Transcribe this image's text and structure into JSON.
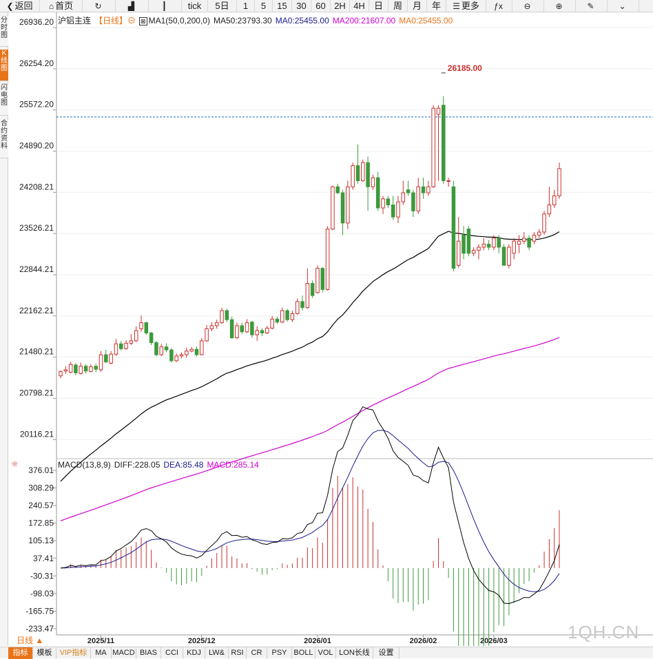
{
  "toolbar": {
    "items": [
      {
        "label": "返回",
        "icon": "arrow-left-icon"
      },
      {
        "label": "首页",
        "icon": "home-icon"
      },
      {
        "label": "",
        "icon": "refresh-icon"
      },
      {
        "label": "",
        "icon": "bar-chart-icon"
      },
      {
        "label": "",
        "icon": "candlestick-icon"
      },
      {
        "label": "tick",
        "icon": ""
      },
      {
        "label": "5日",
        "icon": ""
      },
      {
        "label": "1",
        "icon": ""
      },
      {
        "label": "5",
        "icon": ""
      },
      {
        "label": "15",
        "icon": ""
      },
      {
        "label": "30",
        "icon": ""
      },
      {
        "label": "60",
        "icon": ""
      },
      {
        "label": "2H",
        "icon": ""
      },
      {
        "label": "4H",
        "icon": ""
      },
      {
        "label": "日",
        "icon": ""
      },
      {
        "label": "周",
        "icon": ""
      },
      {
        "label": "月",
        "icon": ""
      },
      {
        "label": "年",
        "icon": ""
      },
      {
        "label": "更多",
        "icon": "menu-icon"
      },
      {
        "label": "",
        "icon": "formula-icon"
      },
      {
        "label": "",
        "icon": "zoom-out-icon"
      },
      {
        "label": "",
        "icon": "zoom-in-icon"
      },
      {
        "label": "",
        "icon": "pen-icon"
      },
      {
        "label": "",
        "icon": "chevron-down-icon"
      }
    ]
  },
  "side_tabs": [
    {
      "label": "分时图",
      "active": false
    },
    {
      "label": "K线图",
      "active": true
    },
    {
      "label": "闪电图",
      "active": false
    },
    {
      "label": "合约资料",
      "active": false
    }
  ],
  "legend": {
    "instrument": "沪铝主连",
    "period_tag": "【日线】",
    "ma_label": "MA1(50,0,200,0)",
    "ma50": "MA50:23793.30",
    "ma0": "MA0:25455.00",
    "ma200": "MA200:21607.00",
    "ma0b": "MA0:25455.00"
  },
  "macd_legend": {
    "label": "MACD(13,8,9)",
    "diff": "DIFF:228.05",
    "dea": "DEA:85.48",
    "macd": "MACD:285.14"
  },
  "period_selector": "日线 ▲",
  "indicator_tabs": [
    "指标",
    "模板",
    "VIP指标",
    "MA",
    "MACD",
    "BIAS",
    "CCI",
    "KDJ",
    "LW&",
    "RSI",
    "CR",
    "PSY",
    "BOLL",
    "VOL",
    "LON长线",
    "设置"
  ],
  "watermark": "1QH.CN",
  "colors": {
    "up": "#c8302c",
    "down": "#3c9a3c",
    "ma50": "#000000",
    "ma200": "#d000d0",
    "dea": "#1a1a8c",
    "accent": "#e8741a",
    "ref_line": "#1a6fb0"
  },
  "chart_data": {
    "type": "candlestick",
    "price_axis_ticks": [
      26936.2,
      26254.2,
      25572.2,
      24890.2,
      24208.21,
      23526.21,
      22844.21,
      22162.21,
      21480.21,
      20798.21,
      20116.21
    ],
    "price_range": [
      19800,
      26936.2
    ],
    "reference_price": 25455,
    "annotation": {
      "label": "26185.00",
      "value": 26185
    },
    "x_labels": [
      {
        "label": "2025/11",
        "index": 8
      },
      {
        "label": "2025/12",
        "index": 28
      },
      {
        "label": "2026/01",
        "index": 51
      },
      {
        "label": "2026/02",
        "index": 72
      },
      {
        "label": "2026/03",
        "index": 86
      }
    ],
    "candles": [
      [
        21170,
        21240,
        21130,
        21260
      ],
      [
        21250,
        21270,
        21200,
        21330
      ],
      [
        21230,
        21360,
        21210,
        21400
      ],
      [
        21350,
        21220,
        21180,
        21380
      ],
      [
        21210,
        21330,
        21190,
        21390
      ],
      [
        21330,
        21250,
        21210,
        21360
      ],
      [
        21240,
        21320,
        21230,
        21360
      ],
      [
        21330,
        21280,
        21230,
        21370
      ],
      [
        21270,
        21520,
        21240,
        21580
      ],
      [
        21520,
        21400,
        21380,
        21600
      ],
      [
        21380,
        21530,
        21360,
        21580
      ],
      [
        21530,
        21700,
        21500,
        21780
      ],
      [
        21700,
        21620,
        21590,
        21750
      ],
      [
        21620,
        21710,
        21600,
        21760
      ],
      [
        21710,
        21750,
        21680,
        21860
      ],
      [
        21750,
        21920,
        21730,
        21990
      ],
      [
        21950,
        22050,
        21900,
        22170
      ],
      [
        22050,
        21880,
        21850,
        22070
      ],
      [
        21880,
        21720,
        21680,
        21900
      ],
      [
        21720,
        21520,
        21490,
        21750
      ],
      [
        21520,
        21650,
        21500,
        21700
      ],
      [
        21650,
        21600,
        21560,
        21710
      ],
      [
        21600,
        21420,
        21390,
        21630
      ],
      [
        21420,
        21500,
        21400,
        21540
      ],
      [
        21500,
        21520,
        21460,
        21560
      ],
      [
        21520,
        21580,
        21470,
        21640
      ],
      [
        21580,
        21610,
        21560,
        21650
      ],
      [
        21610,
        21520,
        21490,
        21660
      ],
      [
        21520,
        21750,
        21510,
        21800
      ],
      [
        21750,
        21950,
        21730,
        22010
      ],
      [
        21950,
        22000,
        21910,
        22060
      ],
      [
        22000,
        22050,
        21950,
        22100
      ],
      [
        22050,
        22250,
        22030,
        22300
      ],
      [
        22250,
        22100,
        22060,
        22280
      ],
      [
        22100,
        21800,
        21780,
        22150
      ],
      [
        21800,
        22000,
        21780,
        22050
      ],
      [
        22000,
        21900,
        21860,
        22050
      ],
      [
        21900,
        22050,
        21880,
        22110
      ],
      [
        22060,
        21850,
        21800,
        22080
      ],
      [
        21850,
        21920,
        21750,
        21990
      ],
      [
        21920,
        21880,
        21830,
        21960
      ],
      [
        21880,
        21960,
        21860,
        22000
      ],
      [
        21960,
        22110,
        21940,
        22160
      ],
      [
        22110,
        22060,
        22030,
        22150
      ],
      [
        22060,
        22250,
        22040,
        22300
      ],
      [
        22250,
        22100,
        22070,
        22280
      ],
      [
        22100,
        22200,
        22060,
        22250
      ],
      [
        22200,
        22400,
        22180,
        22450
      ],
      [
        22400,
        22300,
        22250,
        22500
      ],
      [
        22300,
        22700,
        22280,
        22950
      ],
      [
        22700,
        22500,
        22460,
        22750
      ],
      [
        22550,
        22950,
        22530,
        23000
      ],
      [
        22950,
        22600,
        22550,
        22970
      ],
      [
        22600,
        23600,
        22580,
        23650
      ],
      [
        23600,
        24300,
        23580,
        24320
      ],
      [
        24300,
        24200,
        24180,
        24350
      ],
      [
        24200,
        23700,
        23500,
        24250
      ],
      [
        23700,
        24300,
        23600,
        24400
      ],
      [
        24300,
        24650,
        24250,
        24700
      ],
      [
        24650,
        24400,
        24350,
        25000
      ],
      [
        24400,
        24700,
        24380,
        24750
      ],
      [
        24700,
        24300,
        23900,
        24800
      ],
      [
        24300,
        24450,
        24250,
        24500
      ],
      [
        24450,
        23950,
        23900,
        24550
      ],
      [
        23950,
        24100,
        23850,
        24150
      ],
      [
        24100,
        24000,
        23950,
        24150
      ],
      [
        24000,
        23800,
        23750,
        24150
      ],
      [
        23800,
        24050,
        23700,
        24150
      ],
      [
        24050,
        24200,
        24000,
        24400
      ],
      [
        24250,
        24200,
        24150,
        24400
      ],
      [
        24200,
        23900,
        23800,
        24250
      ],
      [
        23900,
        24300,
        23850,
        24450
      ],
      [
        24300,
        24200,
        24100,
        24450
      ],
      [
        24200,
        24300,
        24150,
        24400
      ],
      [
        24300,
        25600,
        24280,
        25650
      ],
      [
        25500,
        25600,
        24400,
        25650
      ],
      [
        25650,
        24400,
        24350,
        25800
      ],
      [
        24400,
        24400,
        24300,
        24450
      ],
      [
        24300,
        22950,
        22900,
        24400
      ],
      [
        23000,
        23400,
        22960,
        23800
      ],
      [
        23500,
        23200,
        23100,
        23650
      ],
      [
        23600,
        23200,
        23150,
        23650
      ],
      [
        23200,
        23250,
        23150,
        23300
      ],
      [
        23250,
        23300,
        23100,
        23350
      ],
      [
        23300,
        23350,
        23250,
        23450
      ],
      [
        23350,
        23300,
        23250,
        23420
      ],
      [
        23300,
        23450,
        23250,
        23500
      ],
      [
        23450,
        23300,
        23200,
        23500
      ],
      [
        23300,
        23000,
        23000,
        23350
      ],
      [
        23000,
        23300,
        22950,
        23350
      ],
      [
        23200,
        23400,
        23100,
        23450
      ],
      [
        23350,
        23400,
        23200,
        23500
      ],
      [
        23400,
        23450,
        23350,
        23550
      ],
      [
        23450,
        23300,
        23250,
        23500
      ],
      [
        23400,
        23500,
        23350,
        23550
      ],
      [
        23500,
        23550,
        23450,
        23600
      ],
      [
        23550,
        23850,
        23500,
        23900
      ],
      [
        23850,
        24000,
        23800,
        24300
      ],
      [
        24000,
        24150,
        23950,
        24250
      ],
      [
        24150,
        24600,
        24100,
        24700
      ]
    ],
    "macd": {
      "axis_ticks": [
        376.01,
        308.29,
        240.57,
        172.85,
        105.13,
        37.41,
        -30.31,
        -98.03,
        -165.75,
        -233.47
      ],
      "range": [
        -260,
        376.01
      ]
    }
  }
}
